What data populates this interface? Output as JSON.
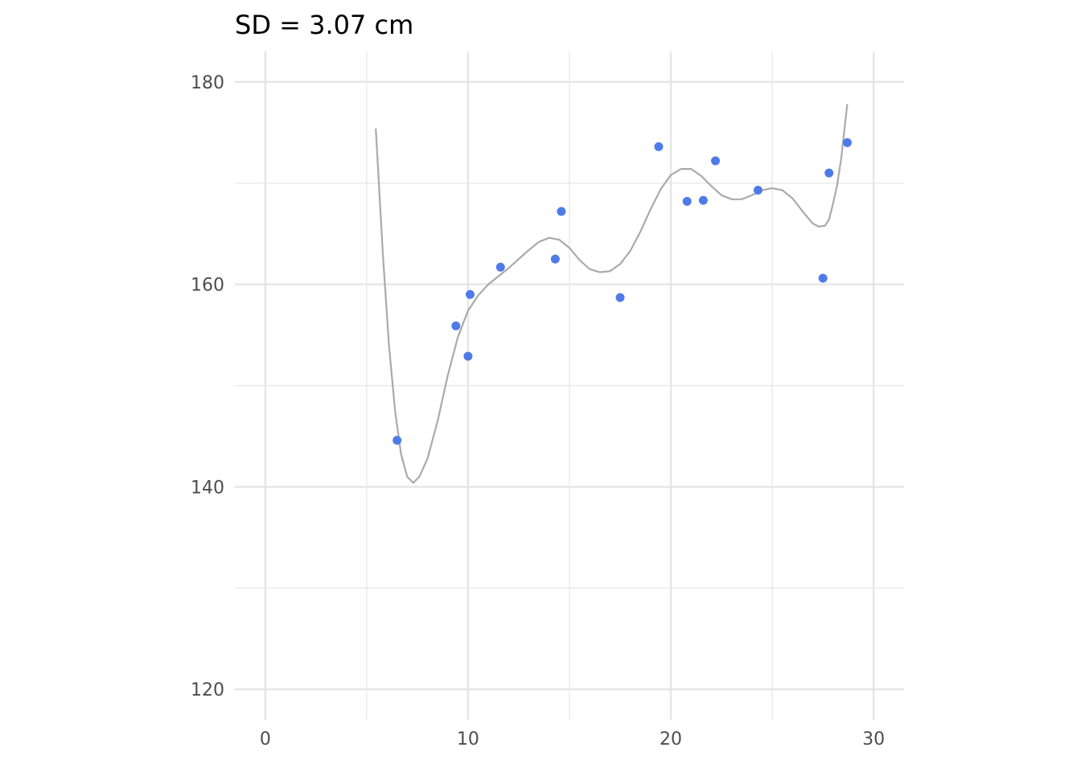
{
  "chart_data": {
    "type": "scatter",
    "title": "SD = 3.07 cm",
    "xlabel": "",
    "ylabel": "",
    "xlim": [
      -1.5,
      31.5
    ],
    "ylim": [
      117,
      183
    ],
    "x_ticks": [
      0,
      10,
      20,
      30
    ],
    "y_ticks": [
      120,
      140,
      160,
      180
    ],
    "x_minor": [
      5,
      15,
      25
    ],
    "y_minor": [
      130,
      150,
      170
    ],
    "grid": true,
    "legend": "none",
    "point_color": "#4f7be8",
    "line_color": "#aaaaaa",
    "grid_color": "#e5e5e5",
    "points": [
      {
        "x": 6.5,
        "y": 144.6
      },
      {
        "x": 9.4,
        "y": 155.9
      },
      {
        "x": 10.0,
        "y": 152.9
      },
      {
        "x": 10.1,
        "y": 159.0
      },
      {
        "x": 11.6,
        "y": 161.7
      },
      {
        "x": 14.3,
        "y": 162.5
      },
      {
        "x": 14.6,
        "y": 167.2
      },
      {
        "x": 17.5,
        "y": 158.7
      },
      {
        "x": 19.4,
        "y": 173.6
      },
      {
        "x": 20.8,
        "y": 168.2
      },
      {
        "x": 21.6,
        "y": 168.3
      },
      {
        "x": 22.2,
        "y": 172.2
      },
      {
        "x": 24.3,
        "y": 169.3
      },
      {
        "x": 27.5,
        "y": 160.6
      },
      {
        "x": 27.8,
        "y": 171.0
      },
      {
        "x": 28.7,
        "y": 174.0
      }
    ],
    "fit_line": {
      "x": [
        5.45,
        5.8,
        6.1,
        6.4,
        6.7,
        7.0,
        7.3,
        7.6,
        8.0,
        8.5,
        9.0,
        9.5,
        10.0,
        10.5,
        11.0,
        11.5,
        12.0,
        12.5,
        13.0,
        13.5,
        14.0,
        14.5,
        15.0,
        15.5,
        16.0,
        16.5,
        17.0,
        17.5,
        18.0,
        18.5,
        19.0,
        19.5,
        20.0,
        20.5,
        21.0,
        21.5,
        22.0,
        22.5,
        23.0,
        23.5,
        24.0,
        24.5,
        25.0,
        25.5,
        26.0,
        26.5,
        27.0,
        27.3,
        27.6,
        27.8,
        28.0,
        28.2,
        28.4,
        28.7
      ],
      "y": [
        175.4,
        163.0,
        154.0,
        147.5,
        143.2,
        141.0,
        140.4,
        141.0,
        142.8,
        146.5,
        151.0,
        154.8,
        157.4,
        158.9,
        160.0,
        160.8,
        161.6,
        162.5,
        163.4,
        164.2,
        164.6,
        164.4,
        163.6,
        162.4,
        161.5,
        161.2,
        161.3,
        162.0,
        163.3,
        165.2,
        167.4,
        169.4,
        170.8,
        171.4,
        171.4,
        170.7,
        169.7,
        168.8,
        168.4,
        168.4,
        168.8,
        169.3,
        169.5,
        169.3,
        168.5,
        167.2,
        166.0,
        165.7,
        165.8,
        166.4,
        168.0,
        169.8,
        172.4,
        177.8
      ]
    }
  }
}
